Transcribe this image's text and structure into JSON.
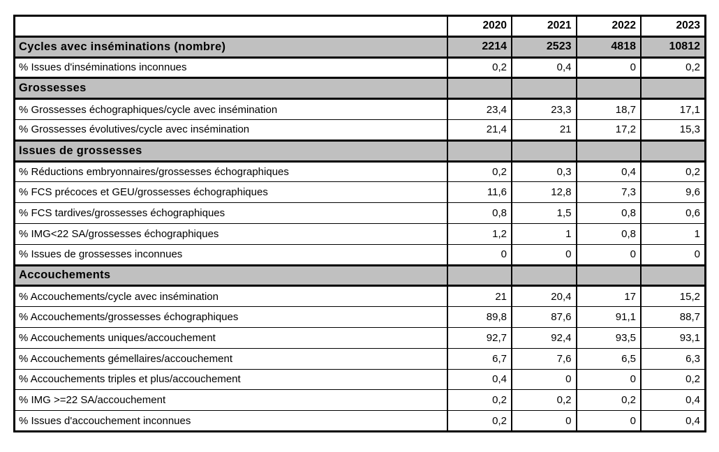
{
  "table": {
    "corner_label": "",
    "columns": [
      "2020",
      "2021",
      "2022",
      "2023"
    ],
    "rows": [
      {
        "type": "total",
        "label": "Cycles avec inséminations (nombre)",
        "values": [
          "2214",
          "2523",
          "4818",
          "10812"
        ]
      },
      {
        "type": "data",
        "label": "% Issues d'inséminations inconnues",
        "values": [
          "0,2",
          "0,4",
          "0",
          "0,2"
        ]
      },
      {
        "type": "section",
        "label": "Grossesses",
        "values": [
          "",
          "",
          "",
          ""
        ]
      },
      {
        "type": "data",
        "label": "% Grossesses échographiques/cycle avec insémination",
        "values": [
          "23,4",
          "23,3",
          "18,7",
          "17,1"
        ]
      },
      {
        "type": "data",
        "label": "% Grossesses évolutives/cycle avec insémination",
        "values": [
          "21,4",
          "21",
          "17,2",
          "15,3"
        ]
      },
      {
        "type": "section",
        "label": "Issues de grossesses",
        "values": [
          "",
          "",
          "",
          ""
        ]
      },
      {
        "type": "data",
        "label": "% Réductions embryonnaires/grossesses échographiques",
        "values": [
          "0,2",
          "0,3",
          "0,4",
          "0,2"
        ]
      },
      {
        "type": "data",
        "label": "% FCS précoces et GEU/grossesses échographiques",
        "values": [
          "11,6",
          "12,8",
          "7,3",
          "9,6"
        ]
      },
      {
        "type": "data",
        "label": "% FCS tardives/grossesses échographiques",
        "values": [
          "0,8",
          "1,5",
          "0,8",
          "0,6"
        ]
      },
      {
        "type": "data",
        "label": "% IMG<22 SA/grossesses échographiques",
        "values": [
          "1,2",
          "1",
          "0,8",
          "1"
        ]
      },
      {
        "type": "data",
        "label": "% Issues de grossesses inconnues",
        "values": [
          "0",
          "0",
          "0",
          "0"
        ]
      },
      {
        "type": "section",
        "label": "Accouchements",
        "values": [
          "",
          "",
          "",
          ""
        ]
      },
      {
        "type": "data",
        "label": "% Accouchements/cycle avec insémination",
        "values": [
          "21",
          "20,4",
          "17",
          "15,2"
        ]
      },
      {
        "type": "data",
        "label": "% Accouchements/grossesses échographiques",
        "values": [
          "89,8",
          "87,6",
          "91,1",
          "88,7"
        ]
      },
      {
        "type": "data",
        "label": "% Accouchements uniques/accouchement",
        "values": [
          "92,7",
          "92,4",
          "93,5",
          "93,1"
        ]
      },
      {
        "type": "data",
        "label": "% Accouchements gémellaires/accouchement",
        "values": [
          "6,7",
          "7,6",
          "6,5",
          "6,3"
        ]
      },
      {
        "type": "data",
        "label": "% Accouchements triples et plus/accouchement",
        "values": [
          "0,4",
          "0",
          "0",
          "0,2"
        ]
      },
      {
        "type": "data",
        "label": "% IMG >=22 SA/accouchement",
        "values": [
          "0,2",
          "0,2",
          "0,2",
          "0,4"
        ]
      },
      {
        "type": "data",
        "label": "% Issues d'accouchement inconnues",
        "values": [
          "0,2",
          "0",
          "0",
          "0,4"
        ]
      }
    ],
    "colors": {
      "section_bg": "#c0c0c0",
      "border": "#000000",
      "background": "#ffffff",
      "text": "#000000"
    }
  }
}
